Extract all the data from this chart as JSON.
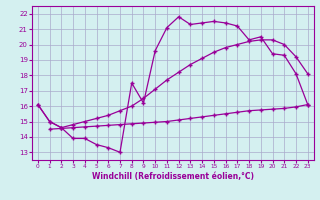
{
  "xlabel": "Windchill (Refroidissement éolien,°C)",
  "bg_color": "#d4f0f0",
  "grid_color": "#aaaacc",
  "line_color": "#990099",
  "xlim": [
    -0.5,
    23.5
  ],
  "ylim": [
    12.5,
    22.5
  ],
  "yticks": [
    13,
    14,
    15,
    16,
    17,
    18,
    19,
    20,
    21,
    22
  ],
  "xticks": [
    0,
    1,
    2,
    3,
    4,
    5,
    6,
    7,
    8,
    9,
    10,
    11,
    12,
    13,
    14,
    15,
    16,
    17,
    18,
    19,
    20,
    21,
    22,
    23
  ],
  "line1_x": [
    0,
    1,
    2,
    3,
    4,
    5,
    6,
    7,
    8,
    9,
    10,
    11,
    12,
    13,
    14,
    15,
    16,
    17,
    18,
    19,
    20,
    21,
    22,
    23
  ],
  "line1_y": [
    16.1,
    15.0,
    14.6,
    13.9,
    13.9,
    13.5,
    13.3,
    13.0,
    17.5,
    16.2,
    19.6,
    21.1,
    21.8,
    21.3,
    21.4,
    21.5,
    21.4,
    21.2,
    20.3,
    20.5,
    19.4,
    19.3,
    18.1,
    16.1
  ],
  "line2_x": [
    0,
    1,
    2,
    3,
    4,
    5,
    6,
    7,
    8,
    9,
    10,
    11,
    12,
    13,
    14,
    15,
    16,
    17,
    18,
    19,
    20,
    21,
    22,
    23
  ],
  "line2_y": [
    16.1,
    15.0,
    14.6,
    14.8,
    15.0,
    15.2,
    15.4,
    15.7,
    16.0,
    16.5,
    17.1,
    17.7,
    18.2,
    18.7,
    19.1,
    19.5,
    19.8,
    20.0,
    20.2,
    20.3,
    20.3,
    20.0,
    19.2,
    18.1
  ],
  "line3_x": [
    1,
    2,
    3,
    4,
    5,
    6,
    7,
    8,
    9,
    10,
    11,
    12,
    13,
    14,
    15,
    16,
    17,
    18,
    19,
    20,
    21,
    22,
    23
  ],
  "line3_y": [
    14.5,
    14.55,
    14.6,
    14.65,
    14.7,
    14.75,
    14.8,
    14.85,
    14.9,
    14.95,
    15.0,
    15.1,
    15.2,
    15.3,
    15.4,
    15.5,
    15.6,
    15.7,
    15.75,
    15.8,
    15.85,
    15.95,
    16.1
  ]
}
